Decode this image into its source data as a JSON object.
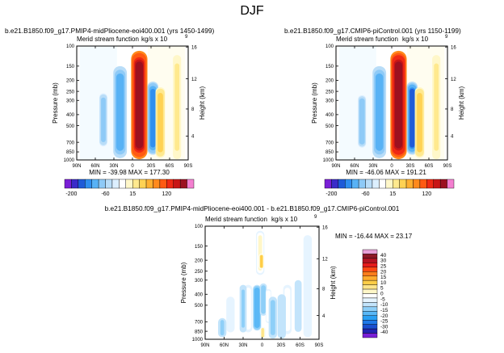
{
  "figure": {
    "title": "DJF",
    "difference_title": "b.e21.B1850.f09_g17.PMIP4-midPliocene-eoi400.001  -  b.e21.B1850.f09_g17.CMIP6-piControl.001"
  },
  "colors": {
    "panel_scale": [
      "#7a1fd6",
      "#3a2bc9",
      "#1e5bd8",
      "#2f8ff0",
      "#58b2f5",
      "#8ecaf7",
      "#b9ddf8",
      "#dcefff",
      "#ffffff",
      "#fff7c9",
      "#ffe98e",
      "#ffd253",
      "#ffb030",
      "#ff8a1c",
      "#ff5a12",
      "#ef2a14",
      "#c81616",
      "#9c1020",
      "#f37fd0"
    ],
    "diff_scale": [
      "#7a1fd6",
      "#2222b3",
      "#1b4fd0",
      "#1f78e8",
      "#2aa0f3",
      "#5ab8f6",
      "#8ecff8",
      "#c3e4fb",
      "#e6f4ff",
      "#ffffff",
      "#fff6c7",
      "#ffe58a",
      "#ffcd47",
      "#ffab2d",
      "#ff7d1c",
      "#ff4a14",
      "#e51c1c",
      "#b51424",
      "#8e1826",
      "#e8a0d8"
    ]
  },
  "chart_data": [
    {
      "type": "contour",
      "name": "midPliocene",
      "title": "b.e21.B1850.f09_g17.PMIP4-midPliocene-eoi400.001 (yrs 1450-1499)",
      "subtitle": "Merid stream function",
      "units": "kg/s x 10",
      "units_exp": "9",
      "xlabel": "",
      "ylabel": "Pressure (mb)",
      "y2label": "Height (km)",
      "x_ticks": [
        "90N",
        "60N",
        "30N",
        "0",
        "30S",
        "60S",
        "90S"
      ],
      "y_ticks": [
        "100",
        "150",
        "200",
        "250",
        "300",
        "400",
        "500",
        "700",
        "850",
        "1000"
      ],
      "y2_ticks": [
        "16",
        "12",
        "8",
        "4"
      ],
      "stats": "MIN = -39.98   MAX = 177.30",
      "min": -39.98,
      "max": 177.3,
      "colorbar_labels": [
        "-200",
        "-60",
        "15",
        "120"
      ],
      "bands": [
        {
          "lat": -11,
          "lat_width": 6,
          "p_top": 110,
          "p_bottom": 985,
          "value": 177.3
        },
        {
          "lat": 20,
          "lat_width": 5,
          "p_top": 150,
          "p_bottom": 965,
          "value": -28
        },
        {
          "lat": 47,
          "lat_width": 3,
          "p_top": 260,
          "p_bottom": 760,
          "value": -18
        },
        {
          "lat": -33,
          "lat_width": 4,
          "p_top": 205,
          "p_bottom": 900,
          "value": -39.98
        },
        {
          "lat": -45,
          "lat_width": 3.5,
          "p_top": 230,
          "p_bottom": 960,
          "value": 16
        },
        {
          "lat": -72,
          "lat_width": 3,
          "p_top": 120,
          "p_bottom": 985,
          "value": 8
        }
      ]
    },
    {
      "type": "contour",
      "name": "piControl",
      "title": "b.e21.B1850.f09_g17.CMIP6-piControl.001 (yrs 1150-1199)",
      "subtitle": "Merid stream function",
      "units": "kg/s x 10",
      "units_exp": "9",
      "xlabel": "",
      "ylabel": "Pressure (mb)",
      "y2label": "Height (km)",
      "x_ticks": [
        "90N",
        "60N",
        "30N",
        "0",
        "30S",
        "60S",
        "90S"
      ],
      "y_ticks": [
        "100",
        "150",
        "200",
        "250",
        "300",
        "400",
        "500",
        "700",
        "850",
        "1000"
      ],
      "y2_ticks": [
        "16",
        "12",
        "8",
        "4"
      ],
      "stats": "MIN = -46.06   MAX = 191.21",
      "min": -46.06,
      "max": 191.21,
      "colorbar_labels": [
        "-200",
        "-60",
        "15",
        "120"
      ],
      "bands": [
        {
          "lat": -11,
          "lat_width": 6,
          "p_top": 110,
          "p_bottom": 985,
          "value": 191.21
        },
        {
          "lat": 20,
          "lat_width": 5,
          "p_top": 150,
          "p_bottom": 965,
          "value": -30
        },
        {
          "lat": 48,
          "lat_width": 3,
          "p_top": 270,
          "p_bottom": 780,
          "value": -20
        },
        {
          "lat": -33,
          "lat_width": 4,
          "p_top": 205,
          "p_bottom": 900,
          "value": -46.06
        },
        {
          "lat": -45,
          "lat_width": 3.5,
          "p_top": 230,
          "p_bottom": 960,
          "value": 18
        },
        {
          "lat": -72,
          "lat_width": 3,
          "p_top": 120,
          "p_bottom": 985,
          "value": 8
        }
      ]
    },
    {
      "type": "contour",
      "name": "difference",
      "subtitle": "Merid stream function",
      "units": "kg/s x 10",
      "units_exp": "9",
      "xlabel": "",
      "ylabel": "Pressure (mb)",
      "y2label": "Height (km)",
      "x_ticks": [
        "90N",
        "60N",
        "30N",
        "0",
        "30S",
        "60S",
        "90S"
      ],
      "y_ticks": [
        "100",
        "150",
        "200",
        "250",
        "300",
        "400",
        "500",
        "700",
        "850",
        "1000"
      ],
      "y2_ticks": [
        "16",
        "12",
        "8",
        "4"
      ],
      "stats": "MIN = -16.44   MAX =  23.17",
      "min": -16.44,
      "max": 23.17,
      "colorbar_labels": [
        "40",
        "30",
        "25",
        "20",
        "15",
        "10",
        "5",
        "0",
        "-5",
        "-10",
        "-15",
        "-20",
        "-25",
        "-30",
        "-40"
      ],
      "bands": [
        {
          "lat": 3,
          "lat_width": 3,
          "p_top": 110,
          "p_bottom": 270,
          "value": 12
        },
        {
          "lat": 1,
          "lat_width": 2,
          "p_top": 175,
          "p_bottom": 240,
          "value": 23.17
        },
        {
          "lat": 8,
          "lat_width": 3,
          "p_top": 330,
          "p_bottom": 840,
          "value": -16.44
        },
        {
          "lat": -2,
          "lat_width": 2.5,
          "p_top": 320,
          "p_bottom": 620,
          "value": -10
        },
        {
          "lat": -10,
          "lat_width": 2,
          "p_top": 360,
          "p_bottom": 720,
          "value": 10
        },
        {
          "lat": -1,
          "lat_width": 2,
          "p_top": 780,
          "p_bottom": 985,
          "value": 18
        },
        {
          "lat": -17,
          "lat_width": 3,
          "p_top": 420,
          "p_bottom": 985,
          "value": -8
        },
        {
          "lat": 22,
          "lat_width": 3,
          "p_top": 330,
          "p_bottom": 870,
          "value": 8
        },
        {
          "lat": 30,
          "lat_width": 2.5,
          "p_top": 330,
          "p_bottom": 870,
          "value": -6
        },
        {
          "lat": -40,
          "lat_width": 3,
          "p_top": 330,
          "p_bottom": 900,
          "value": 9
        },
        {
          "lat": -31,
          "lat_width": 3,
          "p_top": 400,
          "p_bottom": 985,
          "value": -5
        },
        {
          "lat": -57,
          "lat_width": 2.5,
          "p_top": 300,
          "p_bottom": 860,
          "value": -4
        },
        {
          "lat": 50,
          "lat_width": 3,
          "p_top": 420,
          "p_bottom": 870,
          "value": 5
        },
        {
          "lat": 63,
          "lat_width": 3,
          "p_top": 650,
          "p_bottom": 960,
          "value": -6
        },
        {
          "lat": -72,
          "lat_width": 3,
          "p_top": 120,
          "p_bottom": 960,
          "value": 3
        }
      ]
    }
  ]
}
